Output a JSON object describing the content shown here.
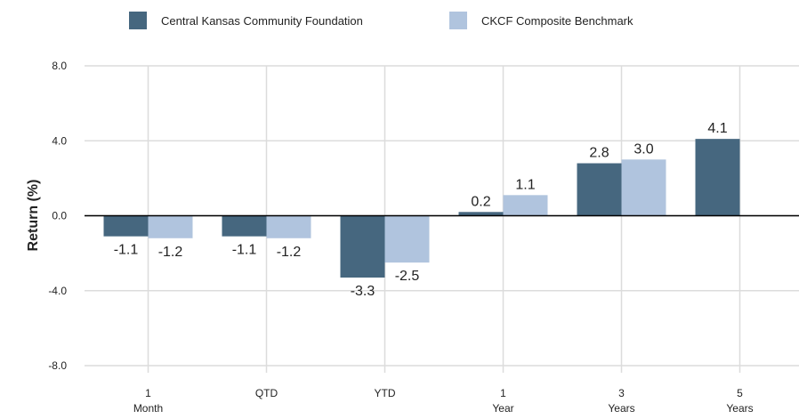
{
  "chart_data": {
    "type": "bar",
    "y_label": "Return (%)",
    "categories": [
      "1\nMonth",
      "QTD",
      "YTD",
      "1\nYear",
      "3\nYears",
      "5\nYears"
    ],
    "series": [
      {
        "name": "Central Kansas Community Foundation",
        "color": "#46677f",
        "values": [
          -1.1,
          -1.1,
          -3.3,
          0.2,
          2.8,
          4.1
        ],
        "value_labels": [
          "-1.1",
          "-1.1",
          "-3.3",
          "0.2",
          "2.8",
          "4.1"
        ]
      },
      {
        "name": "CKCF Composite Benchmark",
        "color": "#b0c4de",
        "values": [
          -1.2,
          -1.2,
          -2.5,
          1.1,
          3.0,
          null
        ],
        "value_labels": [
          "-1.2",
          "-1.2",
          "-2.5",
          "1.1",
          "3.0",
          null
        ]
      }
    ],
    "ylim": [
      -8,
      8
    ],
    "yticks": [
      {
        "value": 8,
        "label": "8.0"
      },
      {
        "value": 4,
        "label": "4.0"
      },
      {
        "value": 0,
        "label": "0.0"
      },
      {
        "value": -4,
        "label": "-4.0"
      },
      {
        "value": -8,
        "label": "-8.0"
      }
    ],
    "grid": true,
    "legend": "top"
  }
}
